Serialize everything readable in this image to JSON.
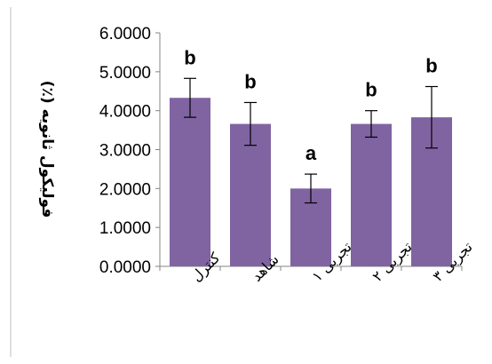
{
  "chart_data": {
    "type": "bar",
    "title": "",
    "xlabel": "",
    "ylabel": "فولیکول ثانویه (٪)",
    "categories": [
      "کنترل",
      "شاهد",
      "تجربی ۱",
      "تجربی ۲",
      "تجربی ۳"
    ],
    "values": [
      4.33,
      3.66,
      2.0,
      3.66,
      3.83
    ],
    "errors": [
      0.5,
      0.55,
      0.37,
      0.34,
      0.79
    ],
    "significance": [
      "b",
      "b",
      "a",
      "b",
      "b"
    ],
    "ylim": [
      0,
      6
    ],
    "yticks": [
      "0.0000",
      "1.0000",
      "2.0000",
      "3.0000",
      "4.0000",
      "5.0000",
      "6.0000"
    ],
    "bar_color": "#8064a2",
    "grid": false,
    "legend": "none"
  }
}
